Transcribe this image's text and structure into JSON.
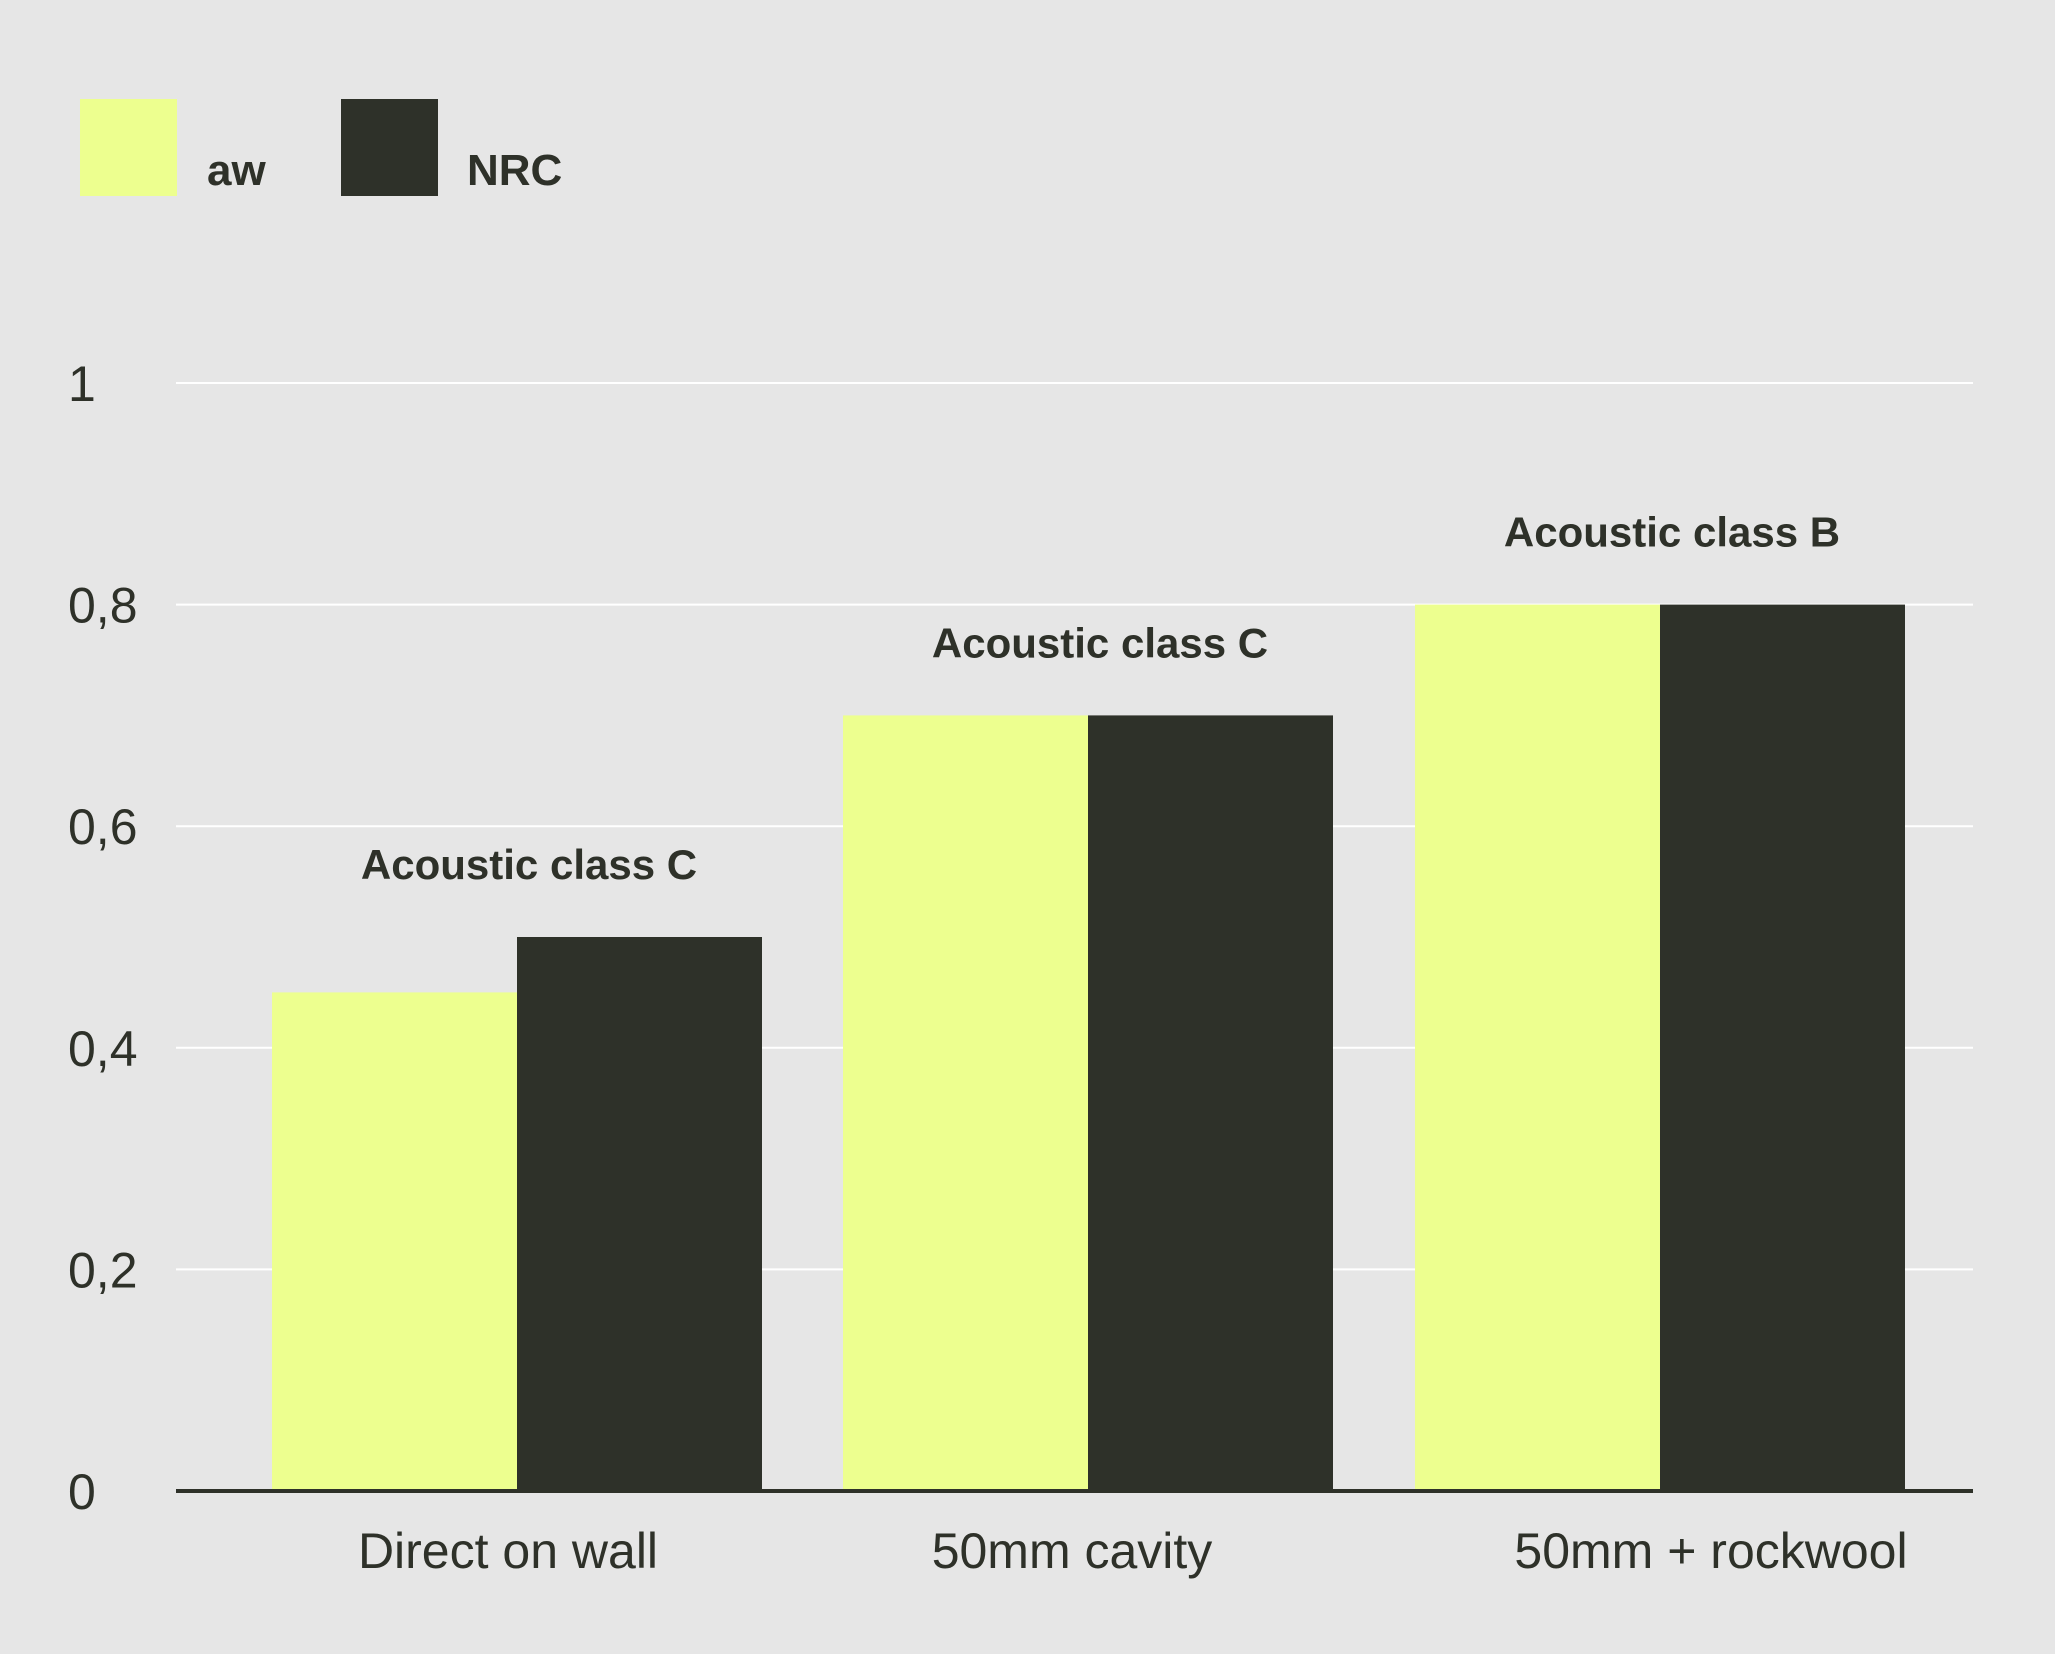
{
  "chart_data": {
    "type": "bar",
    "categories": [
      "Direct on wall",
      "50mm cavity",
      "50mm + rockwool"
    ],
    "series": [
      {
        "name": "aw",
        "color": "#edff8f",
        "values": [
          0.45,
          0.7,
          0.8
        ]
      },
      {
        "name": "NRC",
        "color": "#2e3129",
        "values": [
          0.5,
          0.7,
          0.8
        ]
      }
    ],
    "annotations": [
      "Acoustic class C",
      "Acoustic class C",
      "Acoustic class B"
    ],
    "y_ticks": [
      {
        "value": 0,
        "label": "0"
      },
      {
        "value": 0.2,
        "label": "0,2"
      },
      {
        "value": 0.4,
        "label": "0,4"
      },
      {
        "value": 0.6,
        "label": "0,6"
      },
      {
        "value": 0.8,
        "label": "0,8"
      },
      {
        "value": 1,
        "label": "1"
      }
    ],
    "ylim": [
      0,
      1
    ],
    "grid": true,
    "legend_position": "top-left",
    "colors": {
      "background": "#e6e6e6",
      "grid": "#ffffff",
      "axis": "#2e3129",
      "text": "#2e3129"
    }
  }
}
